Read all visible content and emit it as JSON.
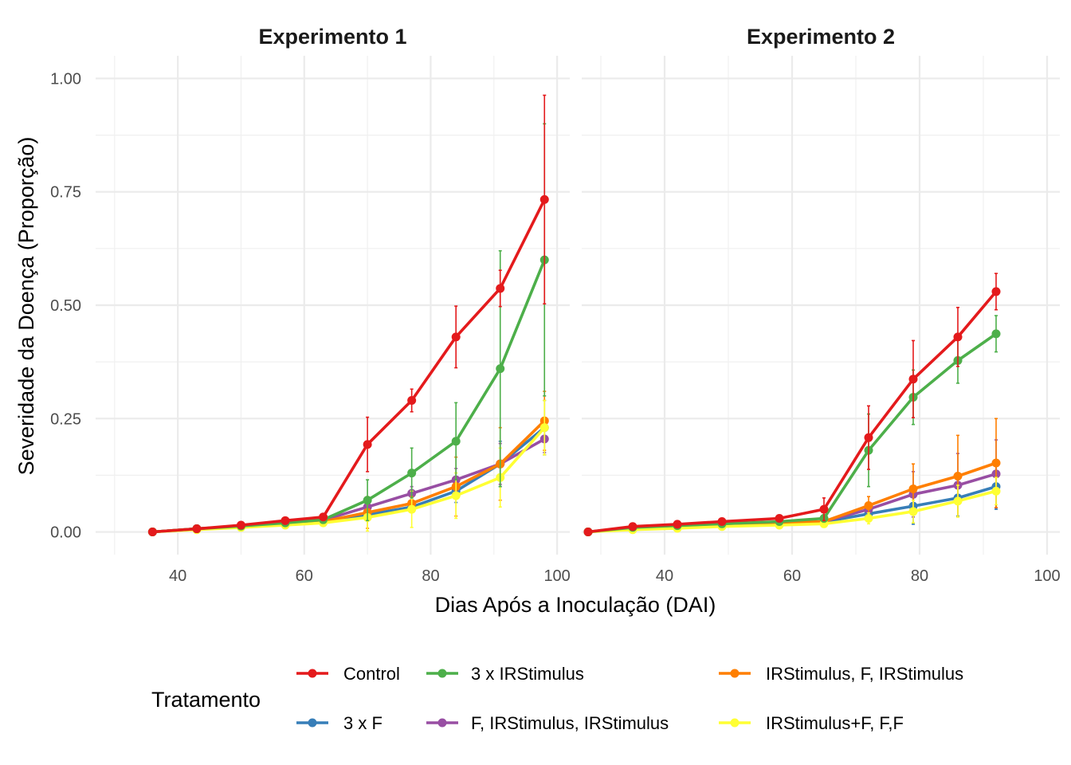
{
  "chart_data": {
    "type": "line",
    "ylabel": "Severidade da Doença (Proporção)",
    "xlabel": "Dias Após a Inoculação (DAI)",
    "xlim": [
      27,
      102
    ],
    "ylim": [
      -0.05,
      1.05
    ],
    "x_ticks": [
      40,
      60,
      80,
      100
    ],
    "x_tick_labels": [
      "40",
      "60",
      "80",
      "100"
    ],
    "y_ticks": [
      0,
      0.25,
      0.5,
      0.75,
      1
    ],
    "y_tick_labels": [
      "0.00",
      "0.25",
      "0.50",
      "0.75",
      "1.00"
    ],
    "grid": true,
    "legend": {
      "title": "Tratamento",
      "position": "bottom",
      "entries": [
        "Control",
        "3 x F",
        "3 x IRStimulus",
        "F, IRStimulus, IRStimulus",
        "IRStimulus, F, IRStimulus",
        "IRStimulus+F, F,F"
      ]
    },
    "colors": {
      "Control": "#E41A1C",
      "3 x F": "#377EB8",
      "3 x IRStimulus": "#4DAF4A",
      "F, IRStimulus, IRStimulus": "#984EA3",
      "IRStimulus, F, IRStimulus": "#FF7F00",
      "IRStimulus+F, F,F": "#FFFF33"
    },
    "panels": [
      {
        "title": "Experimento 1",
        "x": [
          36,
          43,
          50,
          57,
          63,
          70,
          77,
          84,
          91,
          98
        ],
        "series": [
          {
            "name": "3 x F",
            "values": [
              0,
              0.007,
              0.012,
              0.018,
              0.022,
              0.038,
              0.055,
              0.09,
              0.15,
              0.23
            ],
            "err": [
              0,
              0.003,
              0.003,
              0.004,
              0.005,
              0.01,
              0.012,
              0.025,
              0.05,
              0.06
            ]
          },
          {
            "name": "F, IRStimulus, IRStimulus",
            "values": [
              0,
              0.007,
              0.013,
              0.02,
              0.026,
              0.055,
              0.085,
              0.115,
              0.15,
              0.205
            ],
            "err": [
              0,
              0.003,
              0.003,
              0.004,
              0.005,
              0.01,
              0.015,
              0.025,
              0.045,
              0.03
            ]
          },
          {
            "name": "IRStimulus, F, IRStimulus",
            "values": [
              0,
              0.007,
              0.012,
              0.018,
              0.023,
              0.043,
              0.063,
              0.1,
              0.15,
              0.245
            ],
            "err": [
              0,
              0.003,
              0.003,
              0.004,
              0.005,
              0.035,
              0.015,
              0.065,
              0.08,
              0.065
            ]
          },
          {
            "name": "IRStimulus+F, F,F",
            "values": [
              0,
              0.005,
              0.01,
              0.015,
              0.02,
              0.032,
              0.05,
              0.08,
              0.12,
              0.23
            ],
            "err": [
              0,
              0.003,
              0.003,
              0.004,
              0.005,
              0.03,
              0.04,
              0.05,
              0.065,
              0.06
            ]
          },
          {
            "name": "3 x IRStimulus",
            "values": [
              0,
              0.007,
              0.013,
              0.02,
              0.027,
              0.07,
              0.13,
              0.2,
              0.36,
              0.6
            ],
            "err": [
              0,
              0.003,
              0.003,
              0.004,
              0.005,
              0.045,
              0.055,
              0.085,
              0.26,
              0.3
            ]
          },
          {
            "name": "Control",
            "values": [
              0,
              0.007,
              0.015,
              0.025,
              0.033,
              0.193,
              0.29,
              0.43,
              0.537,
              0.733
            ],
            "err": [
              0,
              0.003,
              0.004,
              0.005,
              0.006,
              0.06,
              0.025,
              0.068,
              0.04,
              0.23
            ]
          }
        ]
      },
      {
        "title": "Experimento 2",
        "x": [
          28,
          35,
          42,
          49,
          58,
          65,
          72,
          79,
          86,
          92
        ],
        "series": [
          {
            "name": "3 x F",
            "values": [
              0,
              0.01,
              0.013,
              0.016,
              0.02,
              0.022,
              0.04,
              0.057,
              0.075,
              0.1
            ],
            "err": [
              0,
              0.003,
              0.003,
              0.004,
              0.004,
              0.005,
              0.012,
              0.04,
              0.04,
              0.05
            ]
          },
          {
            "name": "F, IRStimulus, IRStimulus",
            "values": [
              0,
              0.01,
              0.013,
              0.016,
              0.02,
              0.023,
              0.05,
              0.083,
              0.103,
              0.128
            ],
            "err": [
              0,
              0.003,
              0.003,
              0.004,
              0.004,
              0.005,
              0.015,
              0.05,
              0.07,
              0.075
            ]
          },
          {
            "name": "IRStimulus, F, IRStimulus",
            "values": [
              0,
              0.01,
              0.014,
              0.017,
              0.021,
              0.023,
              0.058,
              0.095,
              0.123,
              0.152
            ],
            "err": [
              0,
              0.003,
              0.003,
              0.004,
              0.004,
              0.005,
              0.02,
              0.055,
              0.09,
              0.098
            ]
          },
          {
            "name": "IRStimulus+F, F,F",
            "values": [
              0,
              0.005,
              0.008,
              0.012,
              0.015,
              0.018,
              0.03,
              0.045,
              0.068,
              0.09
            ],
            "err": [
              0,
              0.003,
              0.003,
              0.004,
              0.004,
              0.005,
              0.012,
              0.025,
              0.035,
              0.03
            ]
          },
          {
            "name": "3 x IRStimulus",
            "values": [
              0,
              0.01,
              0.014,
              0.018,
              0.023,
              0.03,
              0.18,
              0.297,
              0.378,
              0.437
            ],
            "err": [
              0,
              0.003,
              0.003,
              0.004,
              0.005,
              0.008,
              0.08,
              0.06,
              0.05,
              0.04
            ]
          },
          {
            "name": "Control",
            "values": [
              0,
              0.012,
              0.017,
              0.023,
              0.03,
              0.05,
              0.208,
              0.337,
              0.43,
              0.53
            ],
            "err": [
              0,
              0.003,
              0.004,
              0.005,
              0.006,
              0.025,
              0.07,
              0.085,
              0.065,
              0.04
            ]
          }
        ]
      }
    ]
  }
}
